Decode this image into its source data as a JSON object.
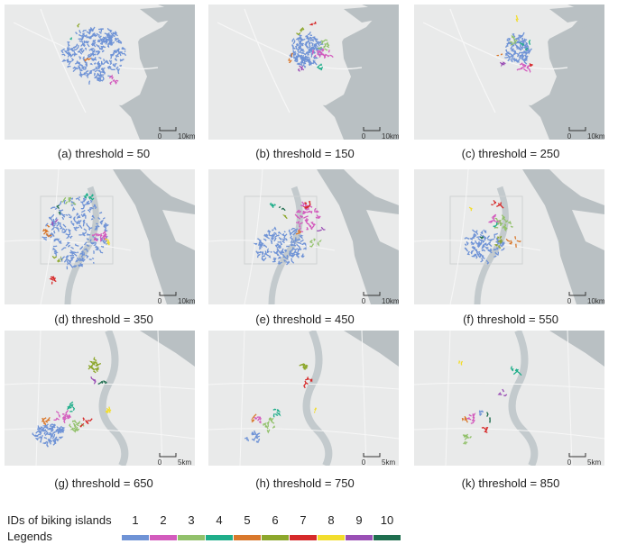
{
  "panels": [
    {
      "caption": "(a) threshold = 50",
      "scale_zero": "0",
      "scale_label": "10km"
    },
    {
      "caption": "(b) threshold = 150",
      "scale_zero": "0",
      "scale_label": "10km"
    },
    {
      "caption": "(c) threshold = 250",
      "scale_zero": "0",
      "scale_label": "10km"
    },
    {
      "caption": "(d) threshold = 350",
      "scale_zero": "0",
      "scale_label": "10km"
    },
    {
      "caption": "(e) threshold = 450",
      "scale_zero": "0",
      "scale_label": "10km"
    },
    {
      "caption": "(f) threshold = 550",
      "scale_zero": "0",
      "scale_label": "10km"
    },
    {
      "caption": "(g) threshold = 650",
      "scale_zero": "0",
      "scale_label": "5km"
    },
    {
      "caption": "(h) threshold = 750",
      "scale_zero": "0",
      "scale_label": "5km"
    },
    {
      "caption": "(k) threshold = 850",
      "scale_zero": "0",
      "scale_label": "5km"
    }
  ],
  "legend": {
    "ids_title": "IDs of biking islands",
    "legends_title": "Legends",
    "ids": [
      "1",
      "2",
      "3",
      "4",
      "5",
      "6",
      "7",
      "8",
      "9",
      "10"
    ],
    "colors": [
      "#6f93d6",
      "#d35bbd",
      "#92c16b",
      "#1fae8a",
      "#d9782c",
      "#8da72c",
      "#d62a2a",
      "#f2dd2d",
      "#9a4fb5",
      "#1f6e4f"
    ]
  },
  "colors": {
    "land": "#e9eaea",
    "water": "#b9c0c3",
    "river": "#c3cacd",
    "road": "#f7f7f7"
  }
}
